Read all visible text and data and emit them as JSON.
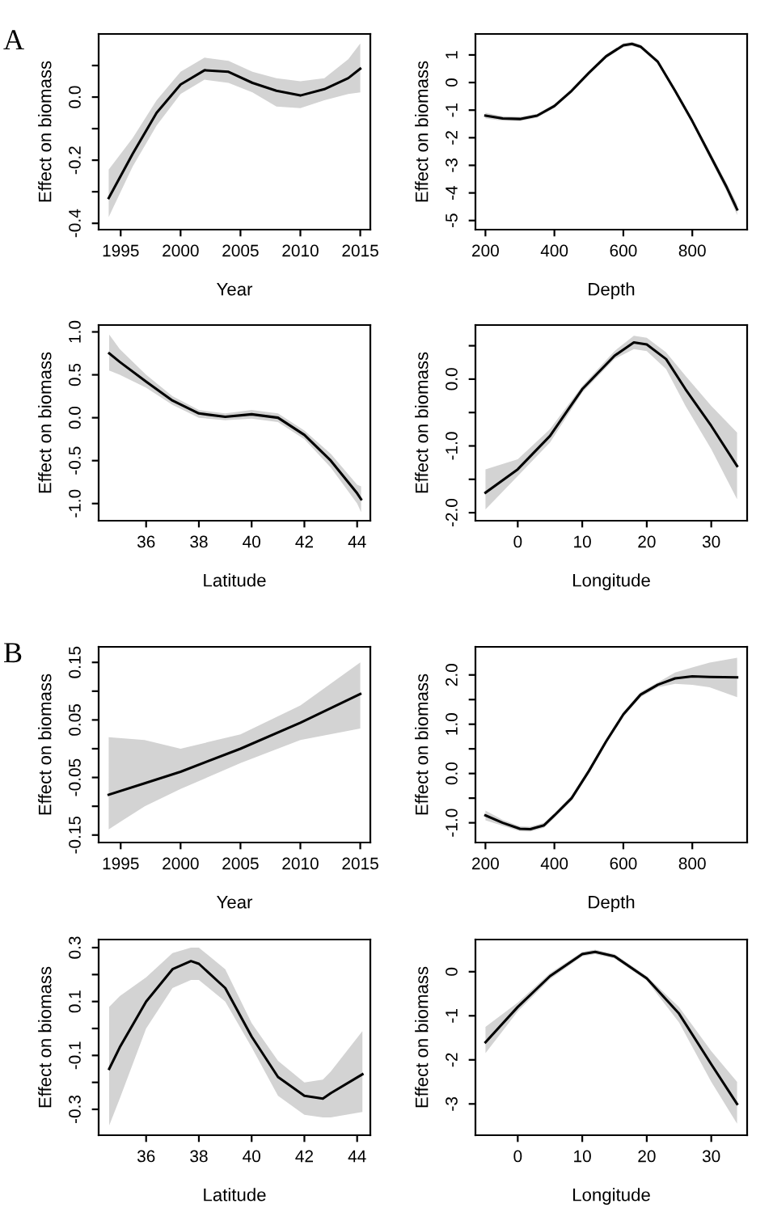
{
  "chart_data": [
    {
      "type": "line",
      "xlabel": "Year",
      "ylabel": "Effect on biomass",
      "annotations": [
        "A"
      ],
      "xlim": [
        1993.16,
        2015.84
      ],
      "ylim": [
        -0.42,
        0.2
      ],
      "xticks": [
        1995,
        2000,
        2005,
        2010,
        2015
      ],
      "yticks": [
        {
          "value": -0.4,
          "label": "-0.4"
        },
        {
          "value": -0.3,
          "label": null
        },
        {
          "value": -0.2,
          "label": "-0.2"
        },
        {
          "value": -0.1,
          "label": null
        },
        {
          "value": 0.0,
          "label": "0.0"
        },
        {
          "value": 0.1,
          "label": null
        }
      ],
      "series": [
        {
          "color": "#000000",
          "x": [
            1994,
            1996,
            1998,
            2000,
            2002,
            2004,
            2006,
            2008,
            2010,
            2012,
            2014,
            2015
          ],
          "values": [
            -0.32,
            -0.18,
            -0.05,
            0.04,
            0.085,
            0.08,
            0.045,
            0.02,
            0.005,
            0.025,
            0.06,
            0.09
          ],
          "lower": [
            -0.38,
            -0.22,
            -0.09,
            0.01,
            0.055,
            0.045,
            0.015,
            -0.03,
            -0.035,
            -0.01,
            0.01,
            0.015
          ],
          "upper": [
            -0.23,
            -0.13,
            -0.01,
            0.08,
            0.125,
            0.115,
            0.08,
            0.06,
            0.05,
            0.06,
            0.12,
            0.17
          ]
        }
      ]
    },
    {
      "type": "line",
      "xlabel": "Depth",
      "ylabel": "Effect on biomass",
      "xlim": [
        171,
        959
      ],
      "ylim": [
        -5.33,
        1.76
      ],
      "xticks": [
        200,
        400,
        600,
        800
      ],
      "yticks": [
        -5,
        -4,
        -3,
        -2,
        -1,
        0,
        1
      ],
      "series": [
        {
          "color": "#000000",
          "x": [
            200,
            250,
            300,
            350,
            400,
            450,
            500,
            550,
            600,
            625,
            650,
            700,
            750,
            800,
            850,
            900,
            930
          ],
          "values": [
            -1.2,
            -1.3,
            -1.32,
            -1.2,
            -0.85,
            -0.3,
            0.35,
            0.95,
            1.35,
            1.4,
            1.3,
            0.75,
            -0.3,
            -1.4,
            -2.6,
            -3.8,
            -4.6
          ],
          "lower": [
            -1.3,
            -1.38,
            -1.4,
            -1.27,
            -0.92,
            -0.37,
            0.28,
            0.88,
            1.28,
            1.33,
            1.23,
            0.68,
            -0.38,
            -1.5,
            -2.72,
            -3.95,
            -4.8
          ],
          "upper": [
            -1.1,
            -1.22,
            -1.24,
            -1.13,
            -0.78,
            -0.23,
            0.42,
            1.02,
            1.42,
            1.47,
            1.37,
            0.82,
            -0.22,
            -1.3,
            -2.48,
            -3.65,
            -4.4
          ]
        }
      ]
    },
    {
      "type": "line",
      "xlabel": "Latitude",
      "ylabel": "Effect on biomass",
      "xlim": [
        34.2,
        44.5
      ],
      "ylim": [
        -1.2,
        1.08
      ],
      "xticks": [
        36,
        38,
        40,
        42,
        44
      ],
      "yticks": [
        {
          "value": -1.0,
          "label": "-1.0"
        },
        {
          "value": -0.5,
          "label": "-0.5"
        },
        {
          "value": 0.0,
          "label": "0.0"
        },
        {
          "value": 0.5,
          "label": "0.5"
        },
        {
          "value": 1.0,
          "label": "1.0"
        }
      ],
      "series": [
        {
          "color": "#000000",
          "x": [
            34.6,
            35,
            36,
            37,
            38,
            39,
            40,
            41,
            42,
            43,
            44,
            44.15
          ],
          "values": [
            0.75,
            0.65,
            0.42,
            0.2,
            0.05,
            0.01,
            0.04,
            0.0,
            -0.2,
            -0.5,
            -0.88,
            -0.95
          ],
          "lower": [
            0.55,
            0.5,
            0.35,
            0.15,
            0.0,
            -0.03,
            -0.01,
            -0.05,
            -0.25,
            -0.58,
            -1.0,
            -1.1
          ],
          "upper": [
            0.97,
            0.8,
            0.5,
            0.25,
            0.09,
            0.05,
            0.09,
            0.05,
            -0.15,
            -0.42,
            -0.78,
            -0.8
          ]
        }
      ]
    },
    {
      "type": "line",
      "xlabel": "Longitude",
      "ylabel": "Effect on biomass",
      "xlim": [
        -6.56,
        35.56
      ],
      "ylim": [
        -2.12,
        0.81
      ],
      "xticks": [
        0,
        10,
        20,
        30
      ],
      "yticks": [
        {
          "value": -2.0,
          "label": "-2.0"
        },
        {
          "value": -1.5,
          "label": null
        },
        {
          "value": -1.0,
          "label": "-1.0"
        },
        {
          "value": -0.5,
          "label": null
        },
        {
          "value": 0.0,
          "label": "0.0"
        },
        {
          "value": 0.5,
          "label": null
        }
      ],
      "series": [
        {
          "color": "#000000",
          "x": [
            -5,
            0,
            5,
            10,
            15,
            18,
            20,
            23,
            26,
            30,
            34
          ],
          "values": [
            -1.7,
            -1.35,
            -0.85,
            -0.15,
            0.35,
            0.55,
            0.52,
            0.3,
            -0.15,
            -0.7,
            -1.3
          ],
          "lower": [
            -1.95,
            -1.45,
            -0.95,
            -0.2,
            0.3,
            0.45,
            0.42,
            0.15,
            -0.4,
            -1.05,
            -1.8
          ],
          "upper": [
            -1.35,
            -1.2,
            -0.75,
            -0.1,
            0.42,
            0.65,
            0.62,
            0.4,
            0.05,
            -0.4,
            -0.8
          ]
        }
      ]
    },
    {
      "type": "line",
      "xlabel": "Year",
      "ylabel": "Effect on biomass",
      "annotations": [
        "B"
      ],
      "xlim": [
        1993.16,
        2015.84
      ],
      "ylim": [
        -0.163,
        0.177
      ],
      "xticks": [
        1995,
        2000,
        2005,
        2010,
        2015
      ],
      "yticks": [
        {
          "value": -0.15,
          "label": "-0.15"
        },
        {
          "value": -0.1,
          "label": null
        },
        {
          "value": -0.05,
          "label": "-0.05"
        },
        {
          "value": 0.0,
          "label": null
        },
        {
          "value": 0.05,
          "label": "0.05"
        },
        {
          "value": 0.1,
          "label": null
        },
        {
          "value": 0.15,
          "label": "0.15"
        }
      ],
      "series": [
        {
          "color": "#000000",
          "x": [
            1994,
            1997,
            2000,
            2005,
            2010,
            2015
          ],
          "values": [
            -0.08,
            -0.06,
            -0.04,
            0.0,
            0.045,
            0.095
          ],
          "lower": [
            -0.14,
            -0.1,
            -0.07,
            -0.025,
            0.015,
            0.035
          ],
          "upper": [
            0.02,
            0.015,
            0.0,
            0.025,
            0.075,
            0.15
          ]
        }
      ]
    },
    {
      "type": "line",
      "xlabel": "Depth",
      "ylabel": "Effect on biomass",
      "xlim": [
        171,
        959
      ],
      "ylim": [
        -1.4,
        2.57
      ],
      "xticks": [
        200,
        400,
        600,
        800
      ],
      "yticks": [
        {
          "value": -1.0,
          "label": "-1.0"
        },
        {
          "value": -0.5,
          "label": null
        },
        {
          "value": 0.0,
          "label": "0.0"
        },
        {
          "value": 0.5,
          "label": null
        },
        {
          "value": 1.0,
          "label": "1.0"
        },
        {
          "value": 1.5,
          "label": null
        },
        {
          "value": 2.0,
          "label": "2.0"
        }
      ],
      "series": [
        {
          "color": "#000000",
          "x": [
            200,
            250,
            300,
            330,
            370,
            400,
            450,
            500,
            550,
            600,
            650,
            700,
            750,
            800,
            850,
            930
          ],
          "values": [
            -0.85,
            -1.0,
            -1.12,
            -1.13,
            -1.05,
            -0.85,
            -0.5,
            0.05,
            0.65,
            1.2,
            1.6,
            1.8,
            1.93,
            1.97,
            1.96,
            1.95
          ],
          "lower": [
            -0.95,
            -1.06,
            -1.17,
            -1.18,
            -1.1,
            -0.9,
            -0.55,
            0.0,
            0.6,
            1.15,
            1.55,
            1.75,
            1.82,
            1.8,
            1.75,
            1.55
          ],
          "upper": [
            -0.75,
            -0.94,
            -1.07,
            -1.08,
            -1.0,
            -0.8,
            -0.45,
            0.1,
            0.7,
            1.25,
            1.65,
            1.85,
            2.05,
            2.15,
            2.25,
            2.35
          ]
        }
      ]
    },
    {
      "type": "line",
      "xlabel": "Latitude",
      "ylabel": "Effect on biomass",
      "xlim": [
        34.2,
        44.5
      ],
      "ylim": [
        -0.396,
        0.33
      ],
      "xticks": [
        36,
        38,
        40,
        42,
        44
      ],
      "yticks": [
        {
          "value": -0.3,
          "label": "-0.3"
        },
        {
          "value": -0.2,
          "label": null
        },
        {
          "value": -0.1,
          "label": "-0.1"
        },
        {
          "value": 0.0,
          "label": null
        },
        {
          "value": 0.1,
          "label": "0.1"
        },
        {
          "value": 0.2,
          "label": null
        },
        {
          "value": 0.3,
          "label": "0.3"
        }
      ],
      "series": [
        {
          "color": "#000000",
          "x": [
            34.6,
            35,
            36,
            37,
            37.7,
            38,
            39,
            40,
            41,
            42,
            42.7,
            43,
            44.2
          ],
          "values": [
            -0.15,
            -0.07,
            0.1,
            0.22,
            0.25,
            0.24,
            0.15,
            -0.03,
            -0.18,
            -0.25,
            -0.26,
            -0.24,
            -0.17
          ],
          "lower": [
            -0.36,
            -0.26,
            0.0,
            0.15,
            0.18,
            0.18,
            0.1,
            -0.07,
            -0.25,
            -0.32,
            -0.33,
            -0.33,
            -0.31
          ],
          "upper": [
            0.08,
            0.12,
            0.19,
            0.28,
            0.3,
            0.3,
            0.22,
            0.02,
            -0.12,
            -0.2,
            -0.19,
            -0.16,
            -0.01
          ]
        }
      ]
    },
    {
      "type": "line",
      "xlabel": "Longitude",
      "ylabel": "Effect on biomass",
      "xlim": [
        -6.56,
        35.56
      ],
      "ylim": [
        -3.71,
        0.73
      ],
      "xticks": [
        0,
        10,
        20,
        30
      ],
      "yticks": [
        -3,
        -2,
        -1,
        0
      ],
      "series": [
        {
          "color": "#000000",
          "x": [
            -5,
            0,
            5,
            10,
            12,
            15,
            20,
            25,
            30,
            34
          ],
          "values": [
            -1.6,
            -0.8,
            -0.1,
            0.4,
            0.45,
            0.35,
            -0.15,
            -0.95,
            -2.1,
            -3.0
          ],
          "lower": [
            -1.85,
            -0.9,
            -0.17,
            0.35,
            0.4,
            0.3,
            -0.2,
            -1.15,
            -2.5,
            -3.45
          ],
          "upper": [
            -1.25,
            -0.7,
            -0.03,
            0.45,
            0.5,
            0.4,
            -0.1,
            -0.8,
            -1.8,
            -2.5
          ]
        }
      ]
    }
  ]
}
